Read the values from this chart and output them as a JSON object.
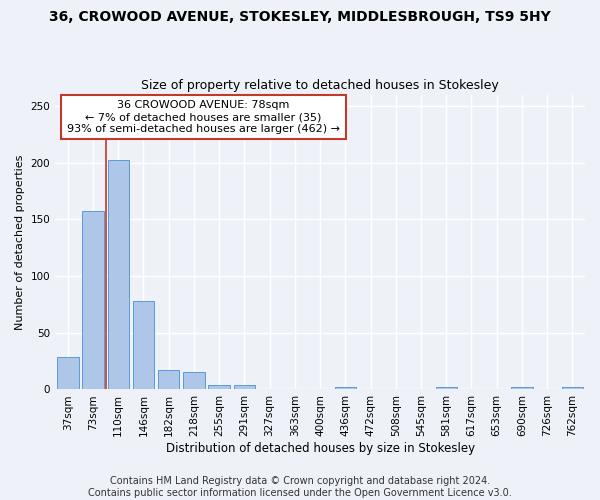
{
  "title": "36, CROWOOD AVENUE, STOKESLEY, MIDDLESBROUGH, TS9 5HY",
  "subtitle": "Size of property relative to detached houses in Stokesley",
  "xlabel": "Distribution of detached houses by size in Stokesley",
  "ylabel": "Number of detached properties",
  "categories": [
    "37sqm",
    "73sqm",
    "110sqm",
    "146sqm",
    "182sqm",
    "218sqm",
    "255sqm",
    "291sqm",
    "327sqm",
    "363sqm",
    "400sqm",
    "436sqm",
    "472sqm",
    "508sqm",
    "545sqm",
    "581sqm",
    "617sqm",
    "653sqm",
    "690sqm",
    "726sqm",
    "762sqm"
  ],
  "values": [
    29,
    157,
    202,
    78,
    17,
    15,
    4,
    4,
    0,
    0,
    0,
    2,
    0,
    0,
    0,
    2,
    0,
    0,
    2,
    0,
    2
  ],
  "bar_color": "#aec6e8",
  "bar_edge_color": "#5b9bd5",
  "vline_x": 1.5,
  "vline_color": "#c0392b",
  "annotation_text": "36 CROWOOD AVENUE: 78sqm\n← 7% of detached houses are smaller (35)\n93% of semi-detached houses are larger (462) →",
  "annotation_box_color": "#ffffff",
  "annotation_box_edge_color": "#c0392b",
  "footer_text": "Contains HM Land Registry data © Crown copyright and database right 2024.\nContains public sector information licensed under the Open Government Licence v3.0.",
  "ylim": [
    0,
    260
  ],
  "background_color": "#eef2f8",
  "grid_color": "#ffffff",
  "title_fontsize": 10,
  "subtitle_fontsize": 9,
  "tick_fontsize": 7.5,
  "footer_fontsize": 7,
  "ylabel_fontsize": 8,
  "xlabel_fontsize": 8.5
}
